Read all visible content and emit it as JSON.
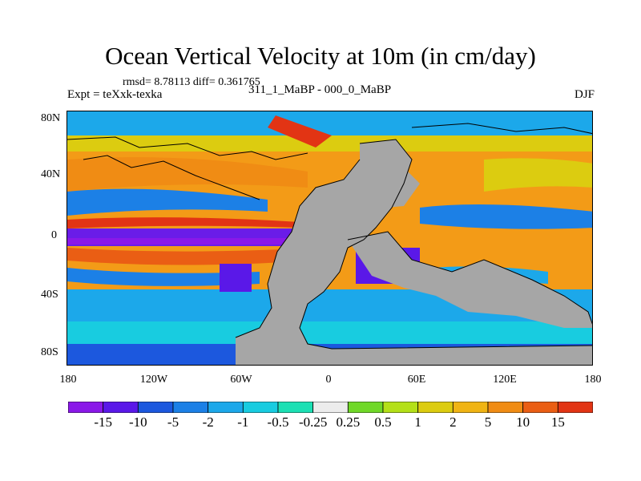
{
  "title": "Ocean Vertical Velocity at 10m (in cm/day)",
  "stats": "rmsd= 8.78113 diff= 0.361765",
  "expt": "Expt = teXxk-texka",
  "experiment_name": "311_1_MaBP - 000_0_MaBP",
  "season": "DJF",
  "map": {
    "lat_ticks": [
      "80N",
      "40N",
      "0",
      "40S",
      "80S"
    ],
    "lon_ticks": [
      "180",
      "120W",
      "60W",
      "0",
      "60E",
      "120E",
      "180"
    ],
    "land_color": "#a6a6a6",
    "coastline_color": "#000000"
  },
  "colorbar": {
    "colors": [
      "#8a18e8",
      "#5a18e8",
      "#1c58de",
      "#1c80e6",
      "#1ca8ea",
      "#18cce0",
      "#1ce0b4",
      "#ececec",
      "#70d828",
      "#b4e018",
      "#dccc10",
      "#f0b414",
      "#f08c14",
      "#ea5e14",
      "#e23414"
    ],
    "labels": [
      "-15",
      "-10",
      "-5",
      "-2",
      "-1",
      "-0.5",
      "-0.25",
      "0.25",
      "0.5",
      "1",
      "2",
      "5",
      "10",
      "15"
    ]
  }
}
